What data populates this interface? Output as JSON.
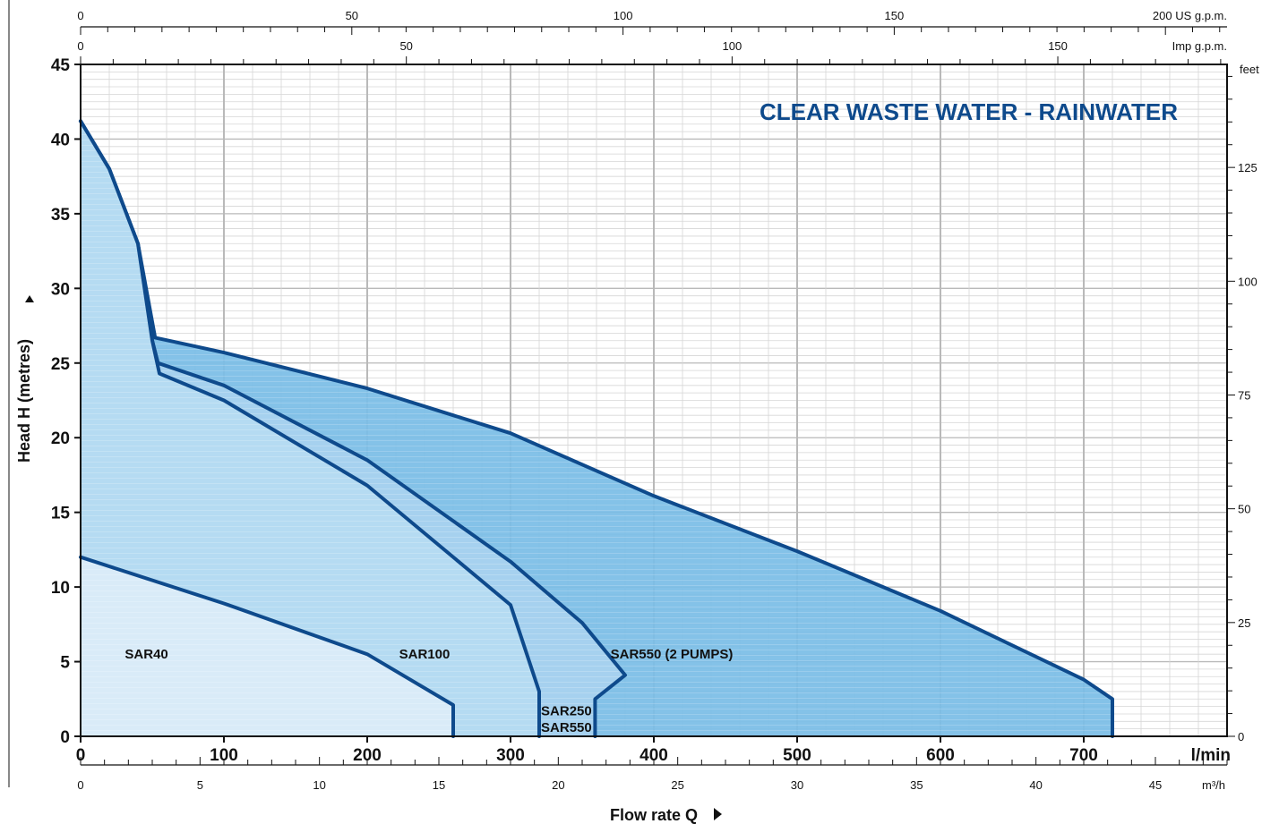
{
  "chart_data": {
    "type": "area",
    "title": "CLEAR WASTE WATER - RAINWATER",
    "xlabel": "Flow rate  Q",
    "ylabel": "Head H  (metres)",
    "x_unit": "l/min",
    "xlim": [
      0,
      800
    ],
    "ylim": [
      0,
      45
    ],
    "x_ticks": [
      "0",
      "100",
      "200",
      "300",
      "400",
      "500",
      "600",
      "700"
    ],
    "y_ticks": [
      "0",
      "5",
      "10",
      "15",
      "20",
      "25",
      "30",
      "35",
      "40",
      "45"
    ],
    "secondary_axes": {
      "usgpm": {
        "unit": "US g.p.m.",
        "label_prefix": "200",
        "ticks": [
          "0",
          "50",
          "100",
          "150",
          "200"
        ]
      },
      "impgpm": {
        "unit": "Imp g.p.m.",
        "ticks": [
          "0",
          "50",
          "100",
          "150"
        ]
      },
      "m3h": {
        "unit": "m³/h",
        "ticks": [
          "0",
          "5",
          "10",
          "15",
          "20",
          "25",
          "30",
          "35",
          "40",
          "45"
        ]
      },
      "feet": {
        "unit": "feet",
        "ticks": [
          "0",
          "25",
          "50",
          "75",
          "100",
          "125"
        ]
      }
    },
    "series": [
      {
        "name": "SAR550 (2 PUMPS)",
        "color": "#79bde6",
        "points": [
          [
            0,
            41.2
          ],
          [
            20,
            38
          ],
          [
            40,
            33
          ],
          [
            52,
            26.7
          ],
          [
            100,
            25.7
          ],
          [
            200,
            23.3
          ],
          [
            300,
            20.3
          ],
          [
            400,
            16.1
          ],
          [
            500,
            12.4
          ],
          [
            600,
            8.4
          ],
          [
            700,
            3.8
          ],
          [
            720,
            2.5
          ],
          [
            720,
            0
          ]
        ]
      },
      {
        "name": "SAR250 SAR550",
        "color": "#a9d3ef",
        "points": [
          [
            0,
            41.2
          ],
          [
            20,
            38
          ],
          [
            40,
            33
          ],
          [
            50,
            26.5
          ],
          [
            54,
            25.0
          ],
          [
            100,
            23.5
          ],
          [
            200,
            18.5
          ],
          [
            300,
            11.7
          ],
          [
            350,
            7.6
          ],
          [
            380,
            4.1
          ],
          [
            359,
            2.5
          ],
          [
            359,
            0
          ]
        ]
      },
      {
        "name": "SAR100",
        "color": "#b6dbf2",
        "points": [
          [
            0,
            41.2
          ],
          [
            20,
            38
          ],
          [
            40,
            33
          ],
          [
            50,
            26.5
          ],
          [
            55,
            24.3
          ],
          [
            100,
            22.5
          ],
          [
            200,
            16.8
          ],
          [
            300,
            8.8
          ],
          [
            320,
            3.0
          ],
          [
            320,
            0
          ]
        ]
      },
      {
        "name": "SAR40",
        "color": "#dcedf9",
        "points": [
          [
            0,
            12.0
          ],
          [
            100,
            8.9
          ],
          [
            200,
            5.5
          ],
          [
            260,
            2.1
          ],
          [
            260,
            0
          ]
        ]
      }
    ]
  }
}
